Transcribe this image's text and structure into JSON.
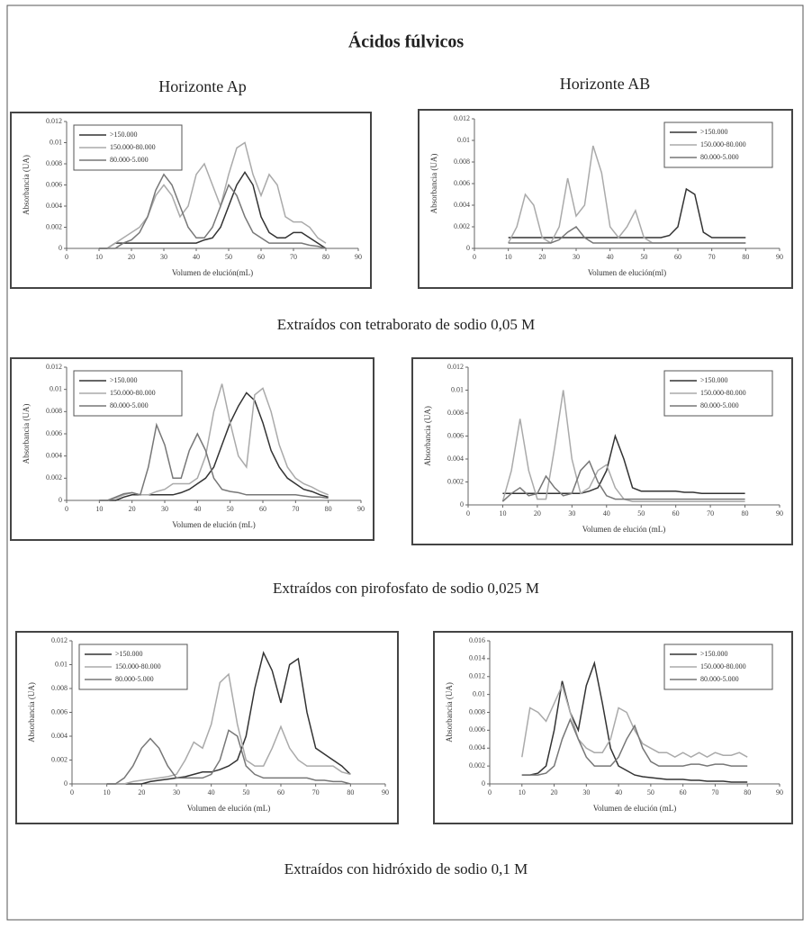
{
  "figure": {
    "title": "Ácidos fúlvicos",
    "column_titles": [
      "Horizonte Ap",
      "Horizonte AB"
    ],
    "captions": [
      "Extraídos con tetraborato de sodio 0,05 M",
      "Extraídos con pirofosfato de sodio 0,025 M",
      "Extraídos con hidróxido de sodio 0,1 M"
    ]
  },
  "chart_data": [
    {
      "type": "line",
      "xlabel": "Volumen de elución(mL)",
      "ylabel": "Absorbancia (UA)",
      "legend": "upper left",
      "xlim": [
        0,
        90
      ],
      "xticks": [
        0,
        10,
        20,
        30,
        40,
        50,
        60,
        70,
        80,
        90
      ],
      "ylim": [
        0,
        0.012
      ],
      "yticks": [
        0,
        0.002,
        0.004,
        0.006,
        0.008,
        0.01,
        0.012
      ],
      "x": [
        10,
        12.5,
        15,
        17.5,
        20,
        22.5,
        25,
        27.5,
        30,
        32.5,
        35,
        37.5,
        40,
        42.5,
        45,
        47.5,
        50,
        52.5,
        55,
        57.5,
        60,
        62.5,
        65,
        67.5,
        70,
        72.5,
        75,
        77.5,
        80
      ],
      "series": [
        {
          "name": ">150.000",
          "color": "#333333",
          "values": [
            0,
            0,
            0.0005,
            0.0005,
            0.0005,
            0.0005,
            0.0005,
            0.0005,
            0.0005,
            0.0005,
            0.0005,
            0.0005,
            0.0005,
            0.0008,
            0.001,
            0.002,
            0.004,
            0.006,
            0.0072,
            0.006,
            0.003,
            0.0015,
            0.001,
            0.001,
            0.0015,
            0.0015,
            0.001,
            0.0005,
            0
          ]
        },
        {
          "name": "150.000-80.000",
          "color": "#aaaaaa",
          "values": [
            0,
            0,
            0.0005,
            0.001,
            0.0015,
            0.002,
            0.003,
            0.005,
            0.006,
            0.005,
            0.003,
            0.004,
            0.007,
            0.008,
            0.006,
            0.004,
            0.007,
            0.0095,
            0.01,
            0.007,
            0.005,
            0.007,
            0.006,
            0.003,
            0.0025,
            0.0025,
            0.002,
            0.001,
            0.0005
          ]
        },
        {
          "name": "80.000-5.000",
          "color": "#777777",
          "values": [
            0,
            0,
            0,
            0.0005,
            0.0008,
            0.0015,
            0.003,
            0.0055,
            0.007,
            0.006,
            0.004,
            0.002,
            0.001,
            0.001,
            0.002,
            0.004,
            0.006,
            0.005,
            0.003,
            0.0015,
            0.001,
            0.0005,
            0.0005,
            0.0005,
            0.0005,
            0.0005,
            0.0003,
            0.0002,
            0
          ]
        }
      ]
    },
    {
      "type": "line",
      "xlabel": "Volumen de elución(ml)",
      "ylabel": "Absorbancia (UA)",
      "legend": "upper right",
      "xlim": [
        0,
        90
      ],
      "xticks": [
        0,
        10,
        20,
        30,
        40,
        50,
        60,
        70,
        80,
        90
      ],
      "ylim": [
        0,
        0.012
      ],
      "yticks": [
        0,
        0.002,
        0.004,
        0.006,
        0.008,
        0.01,
        0.012
      ],
      "x": [
        10,
        12.5,
        15,
        17.5,
        20,
        22.5,
        25,
        27.5,
        30,
        32.5,
        35,
        37.5,
        40,
        42.5,
        45,
        47.5,
        50,
        52.5,
        55,
        57.5,
        60,
        62.5,
        65,
        67.5,
        70,
        72.5,
        75,
        77.5,
        80
      ],
      "series": [
        {
          "name": ">150.000",
          "color": "#333333",
          "values": [
            0.001,
            0.001,
            0.001,
            0.001,
            0.001,
            0.001,
            0.001,
            0.001,
            0.001,
            0.001,
            0.001,
            0.001,
            0.001,
            0.001,
            0.001,
            0.001,
            0.001,
            0.001,
            0.001,
            0.0012,
            0.002,
            0.0055,
            0.005,
            0.0015,
            0.001,
            0.001,
            0.001,
            0.001,
            0.001
          ]
        },
        {
          "name": "150.000-80.000",
          "color": "#aaaaaa",
          "values": [
            0.0005,
            0.002,
            0.005,
            0.004,
            0.001,
            0.0005,
            0.002,
            0.0065,
            0.003,
            0.004,
            0.0095,
            0.007,
            0.002,
            0.001,
            0.002,
            0.0035,
            0.001,
            0.0005,
            0.0005,
            0.0005,
            0.0005,
            0.0005,
            0.0005,
            0.0005,
            0.0005,
            0.0005,
            0.0005,
            0.0005,
            0.0005
          ]
        },
        {
          "name": "80.000-5.000",
          "color": "#777777",
          "values": [
            0.0005,
            0.0005,
            0.0005,
            0.0005,
            0.0005,
            0.0005,
            0.0008,
            0.0015,
            0.002,
            0.001,
            0.0005,
            0.0005,
            0.0005,
            0.0005,
            0.0005,
            0.0005,
            0.0005,
            0.0005,
            0.0005,
            0.0005,
            0.0005,
            0.0005,
            0.0005,
            0.0005,
            0.0005,
            0.0005,
            0.0005,
            0.0005,
            0.0005
          ]
        }
      ]
    },
    {
      "type": "line",
      "xlabel": "Volumen de elución (mL)",
      "ylabel": "Absorbancia (UA)",
      "legend": "upper left",
      "xlim": [
        0,
        90
      ],
      "xticks": [
        0,
        10,
        20,
        30,
        40,
        50,
        60,
        70,
        80,
        90
      ],
      "ylim": [
        0,
        0.012
      ],
      "yticks": [
        0,
        0.002,
        0.004,
        0.006,
        0.008,
        0.01,
        0.012
      ],
      "x": [
        10,
        12.5,
        15,
        17.5,
        20,
        22.5,
        25,
        27.5,
        30,
        32.5,
        35,
        37.5,
        40,
        42.5,
        45,
        47.5,
        50,
        52.5,
        55,
        57.5,
        60,
        62.5,
        65,
        67.5,
        70,
        72.5,
        75,
        77.5,
        80
      ],
      "series": [
        {
          "name": ">150.000",
          "color": "#333333",
          "values": [
            0,
            0,
            0,
            0.0003,
            0.0005,
            0.0005,
            0.0005,
            0.0005,
            0.0005,
            0.0005,
            0.0007,
            0.001,
            0.0015,
            0.002,
            0.003,
            0.005,
            0.007,
            0.0085,
            0.0097,
            0.009,
            0.007,
            0.0045,
            0.003,
            0.002,
            0.0015,
            0.001,
            0.0008,
            0.0005,
            0.0003
          ]
        },
        {
          "name": "150.000-80.000",
          "color": "#aaaaaa",
          "values": [
            0,
            0,
            0.0002,
            0.0005,
            0.0007,
            0.0005,
            0.0005,
            0.0008,
            0.001,
            0.0015,
            0.0015,
            0.0015,
            0.002,
            0.004,
            0.008,
            0.0105,
            0.007,
            0.004,
            0.003,
            0.0095,
            0.0101,
            0.008,
            0.005,
            0.003,
            0.002,
            0.0015,
            0.0012,
            0.0008,
            0.0005
          ]
        },
        {
          "name": "80.000-5.000",
          "color": "#777777",
          "values": [
            0,
            0,
            0.0003,
            0.0006,
            0.0007,
            0.0005,
            0.003,
            0.0068,
            0.005,
            0.002,
            0.002,
            0.0045,
            0.006,
            0.0045,
            0.002,
            0.001,
            0.0008,
            0.0007,
            0.0005,
            0.0005,
            0.0005,
            0.0005,
            0.0005,
            0.0005,
            0.0005,
            0.0004,
            0.0003,
            0.0003,
            0.0002
          ]
        }
      ]
    },
    {
      "type": "line",
      "xlabel": "Volumen de elución (mL)",
      "ylabel": "Absorbancia (UA)",
      "legend": "upper right",
      "xlim": [
        0,
        90
      ],
      "xticks": [
        0,
        10,
        20,
        30,
        40,
        50,
        60,
        70,
        80,
        90
      ],
      "ylim": [
        0,
        0.012
      ],
      "yticks": [
        0,
        0.002,
        0.004,
        0.006,
        0.008,
        0.01,
        0.012
      ],
      "x": [
        10,
        12.5,
        15,
        17.5,
        20,
        22.5,
        25,
        27.5,
        30,
        32.5,
        35,
        37.5,
        40,
        42.5,
        45,
        47.5,
        50,
        52.5,
        55,
        57.5,
        60,
        62.5,
        65,
        67.5,
        70,
        72.5,
        75,
        77.5,
        80
      ],
      "series": [
        {
          "name": ">150.000",
          "color": "#333333",
          "values": [
            0.001,
            0.001,
            0.001,
            0.001,
            0.001,
            0.001,
            0.001,
            0.001,
            0.001,
            0.001,
            0.0012,
            0.0015,
            0.003,
            0.006,
            0.004,
            0.0015,
            0.0012,
            0.0012,
            0.0012,
            0.0012,
            0.0012,
            0.0011,
            0.0011,
            0.001,
            0.001,
            0.001,
            0.001,
            0.001,
            0.001
          ]
        },
        {
          "name": "150.000-80.000",
          "color": "#aaaaaa",
          "values": [
            0.0003,
            0.003,
            0.0075,
            0.003,
            0.0005,
            0.0005,
            0.005,
            0.01,
            0.004,
            0.001,
            0.0015,
            0.003,
            0.0035,
            0.0015,
            0.0005,
            0.0003,
            0.0003,
            0.0003,
            0.0003,
            0.0003,
            0.0003,
            0.0003,
            0.0003,
            0.0003,
            0.0003,
            0.0003,
            0.0003,
            0.0003,
            0.0003
          ]
        },
        {
          "name": "80.000-5.000",
          "color": "#777777",
          "values": [
            0.0003,
            0.001,
            0.0015,
            0.0008,
            0.001,
            0.0025,
            0.0015,
            0.0008,
            0.001,
            0.003,
            0.0038,
            0.002,
            0.0008,
            0.0005,
            0.0005,
            0.0005,
            0.0005,
            0.0005,
            0.0005,
            0.0005,
            0.0005,
            0.0005,
            0.0005,
            0.0005,
            0.0005,
            0.0005,
            0.0005,
            0.0005,
            0.0005
          ]
        }
      ]
    },
    {
      "type": "line",
      "xlabel": "Volumen de elución (mL)",
      "ylabel": "Absorbancia (UA)",
      "legend": "upper left",
      "xlim": [
        0,
        90
      ],
      "xticks": [
        0,
        10,
        20,
        30,
        40,
        50,
        60,
        70,
        80,
        90
      ],
      "ylim": [
        0,
        0.012
      ],
      "yticks": [
        0,
        0.002,
        0.004,
        0.006,
        0.008,
        0.01,
        0.012
      ],
      "x": [
        10,
        12.5,
        15,
        17.5,
        20,
        22.5,
        25,
        27.5,
        30,
        32.5,
        35,
        37.5,
        40,
        42.5,
        45,
        47.5,
        50,
        52.5,
        55,
        57.5,
        60,
        62.5,
        65,
        67.5,
        70,
        72.5,
        75,
        77.5,
        80
      ],
      "series": [
        {
          "name": ">150.000",
          "color": "#333333",
          "values": [
            0,
            0,
            0,
            0,
            0,
            0.0002,
            0.0003,
            0.0004,
            0.0005,
            0.0006,
            0.0008,
            0.001,
            0.001,
            0.0012,
            0.0015,
            0.002,
            0.004,
            0.008,
            0.011,
            0.0095,
            0.0068,
            0.01,
            0.0105,
            0.006,
            0.003,
            0.0025,
            0.002,
            0.0015,
            0.0008
          ]
        },
        {
          "name": "150.000-80.000",
          "color": "#aaaaaa",
          "values": [
            0,
            0,
            0,
            0.0002,
            0.0003,
            0.0004,
            0.0005,
            0.0006,
            0.0008,
            0.002,
            0.0035,
            0.003,
            0.005,
            0.0085,
            0.0092,
            0.005,
            0.002,
            0.0015,
            0.0015,
            0.003,
            0.0048,
            0.003,
            0.002,
            0.0015,
            0.0015,
            0.0015,
            0.0015,
            0.001,
            0.0008
          ]
        },
        {
          "name": "80.000-5.000",
          "color": "#777777",
          "values": [
            0,
            0,
            0.0005,
            0.0015,
            0.003,
            0.0038,
            0.003,
            0.0015,
            0.0005,
            0.0005,
            0.0005,
            0.0005,
            0.0008,
            0.002,
            0.0045,
            0.004,
            0.0015,
            0.0008,
            0.0005,
            0.0005,
            0.0005,
            0.0005,
            0.0005,
            0.0005,
            0.0003,
            0.0003,
            0.0002,
            0.0002,
            0
          ]
        }
      ]
    },
    {
      "type": "line",
      "xlabel": "Volumen de elución (mL)",
      "ylabel": "Absorbancia (UA)",
      "legend": "upper right",
      "xlim": [
        0,
        90
      ],
      "xticks": [
        0,
        10,
        20,
        30,
        40,
        50,
        60,
        70,
        80,
        90
      ],
      "ylim": [
        0,
        0.016
      ],
      "yticks": [
        0,
        0.002,
        0.004,
        0.006,
        0.008,
        0.01,
        0.012,
        0.014,
        0.016
      ],
      "x": [
        10,
        12.5,
        15,
        17.5,
        20,
        22.5,
        25,
        27.5,
        30,
        32.5,
        35,
        37.5,
        40,
        42.5,
        45,
        47.5,
        50,
        52.5,
        55,
        57.5,
        60,
        62.5,
        65,
        67.5,
        70,
        72.5,
        75,
        77.5,
        80
      ],
      "series": [
        {
          "name": ">150.000",
          "color": "#333333",
          "values": [
            0.001,
            0.001,
            0.0012,
            0.002,
            0.006,
            0.0115,
            0.008,
            0.006,
            0.011,
            0.0135,
            0.009,
            0.004,
            0.002,
            0.0015,
            0.001,
            0.0008,
            0.0007,
            0.0006,
            0.0005,
            0.0005,
            0.0005,
            0.0004,
            0.0004,
            0.0003,
            0.0003,
            0.0003,
            0.0002,
            0.0002,
            0.0002
          ]
        },
        {
          "name": "150.000-80.000",
          "color": "#aaaaaa",
          "values": [
            0.003,
            0.0085,
            0.008,
            0.007,
            0.009,
            0.011,
            0.008,
            0.005,
            0.004,
            0.0035,
            0.0035,
            0.005,
            0.0085,
            0.008,
            0.006,
            0.0045,
            0.004,
            0.0035,
            0.0035,
            0.003,
            0.0035,
            0.003,
            0.0035,
            0.003,
            0.0035,
            0.0032,
            0.0032,
            0.0035,
            0.003
          ]
        },
        {
          "name": "80.000-5.000",
          "color": "#777777",
          "values": [
            0.001,
            0.001,
            0.001,
            0.0012,
            0.002,
            0.005,
            0.0072,
            0.005,
            0.003,
            0.002,
            0.002,
            0.002,
            0.003,
            0.005,
            0.0065,
            0.004,
            0.0025,
            0.002,
            0.002,
            0.002,
            0.002,
            0.0022,
            0.0022,
            0.002,
            0.0022,
            0.0022,
            0.002,
            0.002,
            0.002
          ]
        }
      ]
    }
  ]
}
